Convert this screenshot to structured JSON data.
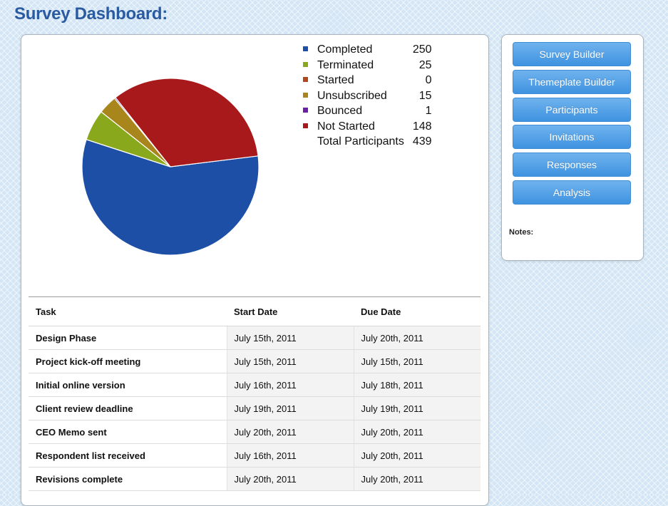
{
  "page": {
    "title": "Survey Dashboard:"
  },
  "chart_data": {
    "type": "pie",
    "categories": [
      "Completed",
      "Terminated",
      "Started",
      "Unsubscribed",
      "Bounced",
      "Not Started"
    ],
    "values": [
      250,
      25,
      0,
      15,
      1,
      148
    ],
    "colors": [
      "#1c4fa5",
      "#8aa81c",
      "#b04a1e",
      "#a8861c",
      "#6a1faa",
      "#a8191b"
    ],
    "total_label": "Total Participants",
    "total_value": 439
  },
  "tasks": {
    "headers": {
      "task": "Task",
      "start": "Start Date",
      "due": "Due Date"
    },
    "rows": [
      {
        "task": "Design Phase",
        "start": "July 15th, 2011",
        "due": "July 20th, 2011"
      },
      {
        "task": "Project kick-off meeting",
        "start": "July 15th, 2011",
        "due": "July 15th, 2011"
      },
      {
        "task": "Initial online version",
        "start": "July 16th, 2011",
        "due": "July 18th, 2011"
      },
      {
        "task": "Client review deadline",
        "start": "July 19th, 2011",
        "due": "July 19th, 2011"
      },
      {
        "task": "CEO Memo sent",
        "start": "July 20th, 2011",
        "due": "July 20th, 2011"
      },
      {
        "task": "Respondent list received",
        "start": "July 16th, 2011",
        "due": "July 20th, 2011"
      },
      {
        "task": "Revisions complete",
        "start": "July 20th, 2011",
        "due": "July 20th, 2011"
      }
    ]
  },
  "sidebar": {
    "buttons": [
      "Survey Builder",
      "Themeplate Builder",
      "Participants",
      "Invitations",
      "Responses",
      "Analysis"
    ],
    "notes_label": "Notes:"
  }
}
